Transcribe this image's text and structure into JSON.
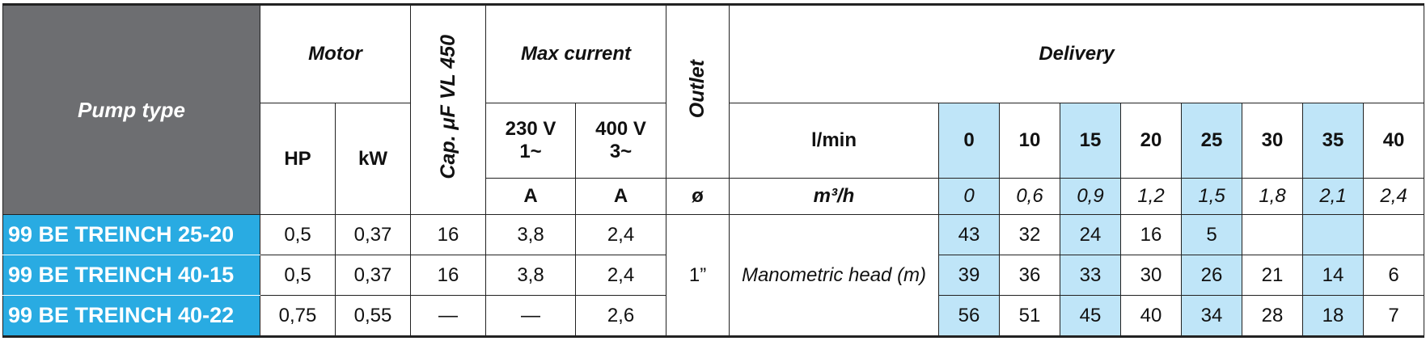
{
  "header": {
    "pump_type": "Pump type",
    "motor": "Motor",
    "hp": "HP",
    "kw": "kW",
    "capacitor": "Cap. μF VL 450",
    "max_current": "Max current",
    "v230": "230 V",
    "phase230": "1~",
    "v400": "400 V",
    "phase400": "3~",
    "unit230": "A",
    "unit400": "A",
    "outlet": "Outlet",
    "outlet_unit": "ø",
    "delivery": "Delivery",
    "lmin": "l/min",
    "m3h": "m³/h"
  },
  "flow_lmin": [
    0,
    10,
    15,
    20,
    25,
    30,
    35,
    40
  ],
  "flow_m3h": [
    "0",
    "0,6",
    "0,9",
    "1,2",
    "1,5",
    "1,8",
    "2,1",
    "2,4"
  ],
  "outlet_size": "1”",
  "head_label": "Manometric head (m)",
  "rows": [
    {
      "name": "99 BE TREINCH 25-20",
      "hp": "0,5",
      "kw": "0,37",
      "cap": "16",
      "i230": "3,8",
      "i400": "2,4",
      "head": [
        43,
        32,
        24,
        16,
        5
      ]
    },
    {
      "name": "99 BE TREINCH 40-15",
      "hp": "0,5",
      "kw": "0,37",
      "cap": "16",
      "i230": "3,8",
      "i400": "2,4",
      "head": [
        39,
        36,
        33,
        30,
        26,
        21,
        14,
        6
      ]
    },
    {
      "name": "99 BE TREINCH 40-22",
      "hp": "0,75",
      "kw": "0,55",
      "cap": "—",
      "i230": "—",
      "i400": "2,6",
      "head": [
        56,
        51,
        45,
        40,
        34,
        28,
        18,
        7
      ]
    }
  ]
}
